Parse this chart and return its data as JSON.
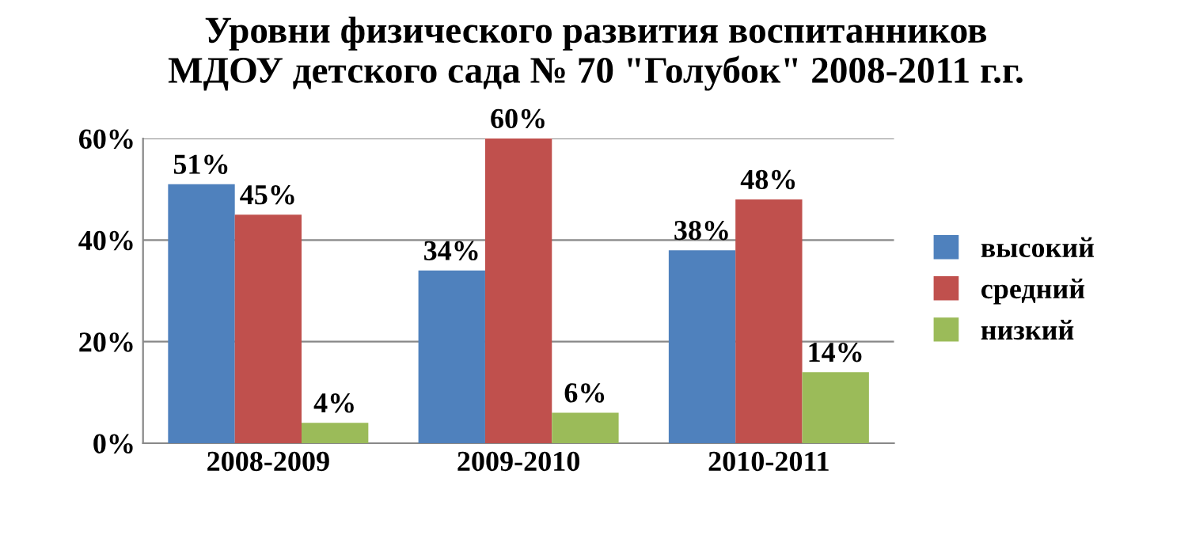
{
  "chart_data": {
    "type": "bar",
    "title": "Уровни физического развития воспитанников\nМДОУ детского сада № 70 \"Голубок\" 2008-2011 г.г.",
    "categories": [
      "2008-2009",
      "2009-2010",
      "2010-2011"
    ],
    "series": [
      {
        "name": "высокий",
        "color": "#4f81bd",
        "values": [
          51,
          34,
          38
        ],
        "value_labels": [
          "51%",
          "34%",
          "38%"
        ]
      },
      {
        "name": "средний",
        "color": "#c0504d",
        "values": [
          45,
          60,
          48
        ],
        "value_labels": [
          "45%",
          "60%",
          "48%"
        ]
      },
      {
        "name": "низкий",
        "color": "#9bbb59",
        "values": [
          4,
          6,
          14
        ],
        "value_labels": [
          "4%",
          "6%",
          "14%"
        ]
      }
    ],
    "ylim": [
      0,
      60
    ],
    "yticks": [
      {
        "value": 0,
        "label": "0%"
      },
      {
        "value": 20,
        "label": "20%"
      },
      {
        "value": 40,
        "label": "40%"
      },
      {
        "value": 60,
        "label": "60%"
      }
    ],
    "grid": "y",
    "legend": "right"
  }
}
